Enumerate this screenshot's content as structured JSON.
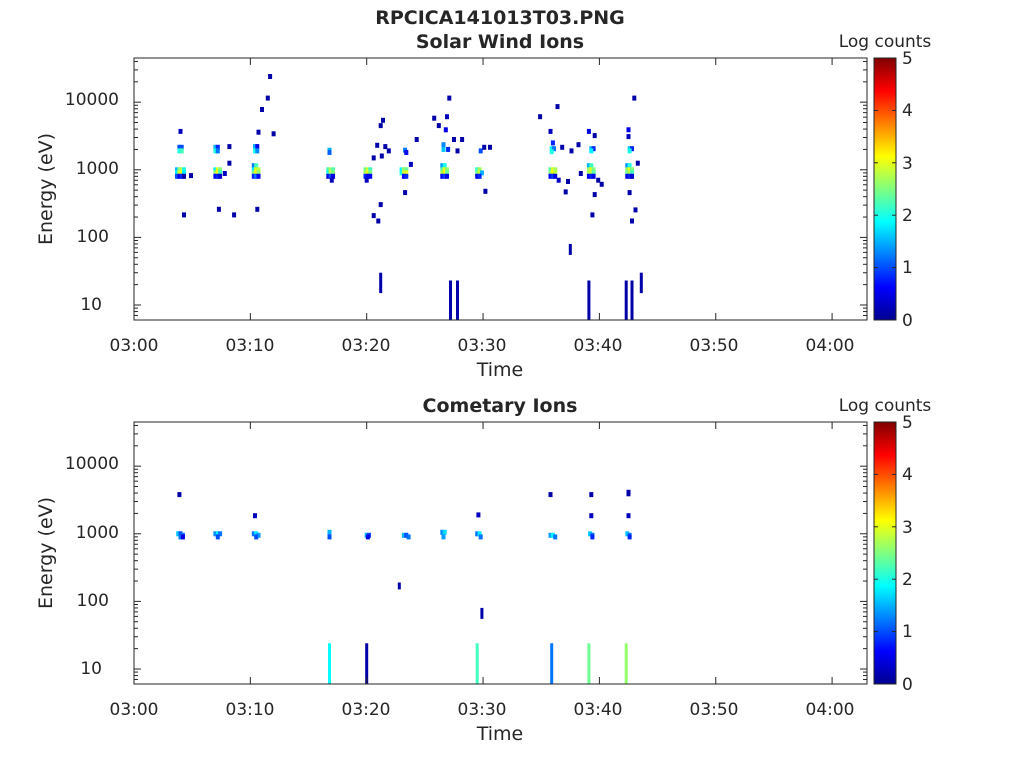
{
  "figure_title": "RPCICA141013T03.PNG",
  "colors": {
    "axis": "#262626",
    "background": "#ffffff",
    "colormap": "jet"
  },
  "chart_data": [
    {
      "type": "heatmap",
      "title": "Solar Wind Ions",
      "xlabel": "Time",
      "ylabel": "Energy (eV)",
      "x_ticks": [
        "03:00",
        "03:10",
        "03:20",
        "03:30",
        "03:40",
        "03:50",
        "04:00"
      ],
      "y_ticks": [
        "10",
        "100",
        "1000",
        "10000"
      ],
      "xlim_minutes": [
        0,
        63
      ],
      "ylim_eV": [
        6,
        45000
      ],
      "y_scale": "log",
      "grid": false,
      "colorbar": {
        "title": "Log counts",
        "ticks": [
          "0",
          "1",
          "2",
          "3",
          "4",
          "5"
        ],
        "range": [
          0,
          5
        ]
      },
      "points": [
        [
          4.0,
          3700,
          0.3
        ],
        [
          3.9,
          2150,
          1.0
        ],
        [
          4.1,
          2150,
          1.0
        ],
        [
          3.9,
          1900,
          2.0
        ],
        [
          4.1,
          1900,
          2.2
        ],
        [
          3.7,
          1000,
          1.5
        ],
        [
          3.9,
          1000,
          2.5
        ],
        [
          4.1,
          1000,
          2.8
        ],
        [
          4.3,
          1000,
          2.0
        ],
        [
          3.7,
          900,
          1.8
        ],
        [
          3.9,
          900,
          2.9
        ],
        [
          4.1,
          900,
          3.0
        ],
        [
          4.3,
          900,
          1.8
        ],
        [
          3.7,
          800,
          1.0
        ],
        [
          3.9,
          800,
          0.5
        ],
        [
          4.1,
          800,
          0.8
        ],
        [
          4.3,
          800,
          0.2
        ],
        [
          4.3,
          215,
          0.2
        ],
        [
          4.9,
          820,
          0.2
        ],
        [
          7.0,
          2150,
          1.5
        ],
        [
          7.2,
          2150,
          0.8
        ],
        [
          7.0,
          1900,
          2.0
        ],
        [
          7.2,
          1900,
          1.2
        ],
        [
          7.0,
          1000,
          1.8
        ],
        [
          7.2,
          1000,
          3.0
        ],
        [
          7.4,
          1000,
          2.5
        ],
        [
          7.0,
          900,
          2.6
        ],
        [
          7.2,
          900,
          3.1
        ],
        [
          7.4,
          900,
          2.2
        ],
        [
          7.0,
          800,
          0.6
        ],
        [
          7.2,
          800,
          0.8
        ],
        [
          7.4,
          800,
          0.4
        ],
        [
          7.8,
          880,
          0.3
        ],
        [
          8.2,
          2200,
          0.2
        ],
        [
          8.2,
          1250,
          0.2
        ],
        [
          7.3,
          260,
          0.2
        ],
        [
          8.6,
          215,
          0.2
        ],
        [
          10.4,
          2200,
          1.5
        ],
        [
          10.6,
          2200,
          0.5
        ],
        [
          10.4,
          1900,
          2.0
        ],
        [
          10.6,
          1900,
          1.3
        ],
        [
          10.3,
          1150,
          1.2
        ],
        [
          10.5,
          1150,
          2.2
        ],
        [
          10.3,
          1000,
          1.8
        ],
        [
          10.5,
          1000,
          3.0
        ],
        [
          10.7,
          1000,
          2.8
        ],
        [
          10.3,
          900,
          2.5
        ],
        [
          10.5,
          900,
          3.1
        ],
        [
          10.7,
          900,
          2.6
        ],
        [
          10.3,
          800,
          0.8
        ],
        [
          10.5,
          800,
          1.2
        ],
        [
          10.7,
          800,
          0.6
        ],
        [
          10.6,
          260,
          0.2
        ],
        [
          10.7,
          3600,
          0.2
        ],
        [
          11.0,
          7800,
          0.2
        ],
        [
          11.5,
          11500,
          0.2
        ],
        [
          11.7,
          24000,
          0.2
        ],
        [
          12.0,
          3400,
          0.2
        ],
        [
          16.8,
          1950,
          1.5
        ],
        [
          16.8,
          1800,
          1.1
        ],
        [
          16.7,
          1000,
          2.2
        ],
        [
          16.9,
          1000,
          2.7
        ],
        [
          17.1,
          1000,
          2.3
        ],
        [
          16.7,
          900,
          2.0
        ],
        [
          16.9,
          900,
          2.8
        ],
        [
          17.1,
          900,
          2.5
        ],
        [
          16.7,
          800,
          0.5
        ],
        [
          16.9,
          800,
          1.0
        ],
        [
          17.1,
          800,
          0.5
        ],
        [
          17.0,
          700,
          0.3
        ],
        [
          19.9,
          1000,
          2.4
        ],
        [
          20.1,
          1000,
          2.9
        ],
        [
          20.3,
          1000,
          2.2
        ],
        [
          19.9,
          900,
          2.7
        ],
        [
          20.1,
          900,
          3.0
        ],
        [
          20.3,
          900,
          2.5
        ],
        [
          19.9,
          800,
          0.8
        ],
        [
          20.1,
          800,
          0.5
        ],
        [
          20.3,
          800,
          0.6
        ],
        [
          20.0,
          700,
          0.3
        ],
        [
          20.6,
          1500,
          0.2
        ],
        [
          20.9,
          2300,
          0.2
        ],
        [
          21.2,
          4500,
          0.2
        ],
        [
          21.4,
          5400,
          0.2
        ],
        [
          21.6,
          2200,
          0.2
        ],
        [
          21.9,
          1900,
          0.2
        ],
        [
          21.3,
          1600,
          0.2
        ],
        [
          20.6,
          210,
          0.2
        ],
        [
          21.2,
          305,
          0.2
        ],
        [
          21.0,
          175,
          0.2
        ],
        [
          23.0,
          1000,
          1.8
        ],
        [
          23.2,
          1000,
          2.7
        ],
        [
          23.4,
          1000,
          2.4
        ],
        [
          23.0,
          900,
          2.0
        ],
        [
          23.2,
          900,
          2.8
        ],
        [
          23.4,
          900,
          3.0
        ],
        [
          23.2,
          800,
          0.6
        ],
        [
          23.4,
          800,
          0.8
        ],
        [
          23.3,
          1950,
          1.2
        ],
        [
          23.4,
          1800,
          0.6
        ],
        [
          23.8,
          1200,
          0.3
        ],
        [
          23.3,
          460,
          0.2
        ],
        [
          24.3,
          2800,
          0.2
        ],
        [
          26.5,
          1150,
          1.4
        ],
        [
          26.7,
          1150,
          2.0
        ],
        [
          26.5,
          1000,
          2.3
        ],
        [
          26.7,
          1000,
          3.0
        ],
        [
          26.9,
          1000,
          2.6
        ],
        [
          26.5,
          900,
          2.7
        ],
        [
          26.7,
          900,
          3.1
        ],
        [
          26.9,
          900,
          2.4
        ],
        [
          26.5,
          800,
          0.6
        ],
        [
          26.7,
          800,
          0.9
        ],
        [
          26.9,
          800,
          0.5
        ],
        [
          26.6,
          2000,
          1.6
        ],
        [
          27.0,
          2000,
          0.8
        ],
        [
          26.6,
          2350,
          1.3
        ],
        [
          26.8,
          3900,
          0.5
        ],
        [
          26.9,
          6100,
          0.3
        ],
        [
          27.1,
          11500,
          0.2
        ],
        [
          25.8,
          5800,
          0.2
        ],
        [
          26.2,
          4500,
          0.2
        ],
        [
          27.5,
          2800,
          0.2
        ],
        [
          27.8,
          1900,
          0.2
        ],
        [
          28.2,
          2800,
          0.2
        ],
        [
          29.5,
          1000,
          2.1
        ],
        [
          29.7,
          1000,
          2.7
        ],
        [
          29.5,
          900,
          2.4
        ],
        [
          29.7,
          900,
          2.9
        ],
        [
          29.9,
          900,
          1.5
        ],
        [
          29.5,
          800,
          0.5
        ],
        [
          29.7,
          800,
          0.8
        ],
        [
          29.8,
          1900,
          1.0
        ],
        [
          30.1,
          2150,
          0.2
        ],
        [
          30.6,
          2150,
          0.2
        ],
        [
          30.2,
          480,
          0.2
        ],
        [
          34.9,
          6100,
          0.2
        ],
        [
          35.8,
          3700,
          0.3
        ],
        [
          36.0,
          2500,
          0.8
        ],
        [
          36.4,
          8600,
          0.2
        ],
        [
          35.9,
          2050,
          1.8
        ],
        [
          36.1,
          2050,
          1.2
        ],
        [
          35.9,
          1850,
          2.0
        ],
        [
          35.8,
          1000,
          2.3
        ],
        [
          36.0,
          1000,
          3.0
        ],
        [
          36.2,
          1000,
          2.7
        ],
        [
          35.8,
          900,
          2.5
        ],
        [
          36.0,
          900,
          3.1
        ],
        [
          36.2,
          900,
          2.8
        ],
        [
          35.8,
          800,
          0.6
        ],
        [
          36.0,
          800,
          0.9
        ],
        [
          36.2,
          800,
          0.5
        ],
        [
          36.5,
          700,
          0.3
        ],
        [
          36.8,
          2150,
          0.2
        ],
        [
          37.3,
          670,
          0.2
        ],
        [
          37.1,
          470,
          0.2
        ],
        [
          37.6,
          1900,
          0.2
        ],
        [
          38.2,
          2350,
          0.2
        ],
        [
          38.4,
          880,
          0.2
        ],
        [
          39.1,
          3700,
          0.5
        ],
        [
          39.3,
          2050,
          1.5
        ],
        [
          39.5,
          2050,
          0.8
        ],
        [
          39.3,
          1900,
          1.8
        ],
        [
          39.1,
          1150,
          1.5
        ],
        [
          39.3,
          1150,
          2.2
        ],
        [
          39.1,
          1000,
          2.6
        ],
        [
          39.3,
          1000,
          3.0
        ],
        [
          39.5,
          1000,
          2.5
        ],
        [
          39.1,
          900,
          2.7
        ],
        [
          39.3,
          900,
          2.9
        ],
        [
          39.5,
          900,
          2.3
        ],
        [
          39.1,
          800,
          0.6
        ],
        [
          39.3,
          800,
          0.8
        ],
        [
          39.5,
          800,
          0.5
        ],
        [
          39.6,
          3200,
          0.2
        ],
        [
          39.9,
          700,
          0.2
        ],
        [
          39.6,
          430,
          0.2
        ],
        [
          39.4,
          215,
          0.2
        ],
        [
          40.2,
          610,
          0.2
        ],
        [
          42.5,
          3900,
          0.5
        ],
        [
          42.5,
          3100,
          0.3
        ],
        [
          42.6,
          2050,
          1.6
        ],
        [
          42.8,
          2050,
          0.8
        ],
        [
          42.6,
          1900,
          2.0
        ],
        [
          42.4,
          1150,
          1.3
        ],
        [
          42.6,
          1150,
          2.0
        ],
        [
          42.4,
          1000,
          2.6
        ],
        [
          42.6,
          1000,
          3.0
        ],
        [
          42.8,
          1000,
          2.5
        ],
        [
          42.4,
          900,
          2.4
        ],
        [
          42.6,
          900,
          2.8
        ],
        [
          42.8,
          900,
          2.2
        ],
        [
          42.4,
          800,
          0.5
        ],
        [
          42.6,
          800,
          0.8
        ],
        [
          42.8,
          800,
          0.4
        ],
        [
          43.0,
          11500,
          0.2
        ],
        [
          43.3,
          1250,
          0.2
        ],
        [
          42.6,
          460,
          0.2
        ],
        [
          43.1,
          255,
          0.2
        ],
        [
          42.8,
          175,
          0.2
        ]
      ],
      "lines": [
        [
          21.2,
          15,
          30,
          0.2
        ],
        [
          27.2,
          5,
          23,
          0.2
        ],
        [
          27.8,
          5,
          23,
          0.2
        ],
        [
          37.5,
          55,
          80,
          0.2
        ],
        [
          39.1,
          5,
          23,
          0.2
        ],
        [
          42.3,
          5,
          23,
          0.2
        ],
        [
          42.8,
          5,
          23,
          0.2
        ],
        [
          43.6,
          15,
          30,
          0.2
        ]
      ]
    },
    {
      "type": "heatmap",
      "title": "Cometary Ions",
      "xlabel": "Time",
      "ylabel": "Energy (eV)",
      "x_ticks": [
        "03:00",
        "03:10",
        "03:20",
        "03:30",
        "03:40",
        "03:50",
        "04:00"
      ],
      "y_ticks": [
        "10",
        "100",
        "1000",
        "10000"
      ],
      "xlim_minutes": [
        0,
        63
      ],
      "ylim_eV": [
        6,
        45000
      ],
      "y_scale": "log",
      "grid": false,
      "colorbar": {
        "title": "Log counts",
        "ticks": [
          "0",
          "1",
          "2",
          "3",
          "4",
          "5"
        ],
        "range": [
          0,
          5
        ]
      },
      "points": [
        [
          3.9,
          3800,
          0.2
        ],
        [
          3.8,
          1000,
          1.6
        ],
        [
          4.0,
          1000,
          1.0
        ],
        [
          4.2,
          950,
          1.2
        ],
        [
          4.0,
          900,
          1.2
        ],
        [
          4.2,
          900,
          0.5
        ],
        [
          7.0,
          1000,
          1.3
        ],
        [
          7.2,
          1000,
          1.8
        ],
        [
          7.4,
          1000,
          1.2
        ],
        [
          7.2,
          900,
          1.0
        ],
        [
          10.4,
          1850,
          0.3
        ],
        [
          10.3,
          1000,
          1.2
        ],
        [
          10.5,
          1000,
          1.8
        ],
        [
          10.7,
          950,
          1.4
        ],
        [
          10.5,
          900,
          1.0
        ],
        [
          16.8,
          1050,
          1.5
        ],
        [
          16.8,
          900,
          1.0
        ],
        [
          20.0,
          950,
          1.5
        ],
        [
          20.2,
          950,
          1.0
        ],
        [
          20.1,
          900,
          0.5
        ],
        [
          23.2,
          950,
          1.5
        ],
        [
          23.4,
          950,
          1.0
        ],
        [
          23.6,
          900,
          1.2
        ],
        [
          26.5,
          1050,
          1.3
        ],
        [
          26.7,
          1050,
          1.7
        ],
        [
          26.6,
          900,
          1.4
        ],
        [
          29.6,
          1900,
          0.3
        ],
        [
          29.5,
          1000,
          1.2
        ],
        [
          29.7,
          1000,
          1.8
        ],
        [
          29.8,
          900,
          1.2
        ],
        [
          35.8,
          3800,
          0.2
        ],
        [
          35.8,
          950,
          1.4
        ],
        [
          36.0,
          950,
          1.8
        ],
        [
          36.2,
          900,
          1.2
        ],
        [
          39.3,
          3800,
          0.2
        ],
        [
          39.3,
          1850,
          0.3
        ],
        [
          39.2,
          1000,
          1.6
        ],
        [
          39.4,
          950,
          1.2
        ],
        [
          39.4,
          900,
          0.8
        ],
        [
          42.5,
          4100,
          0.2
        ],
        [
          42.5,
          3900,
          0.2
        ],
        [
          42.5,
          1850,
          0.3
        ],
        [
          42.4,
          1000,
          1.6
        ],
        [
          42.6,
          950,
          1.2
        ],
        [
          42.6,
          900,
          0.8
        ]
      ],
      "lines": [
        [
          22.8,
          150,
          190,
          0.2
        ],
        [
          29.9,
          55,
          80,
          0.2
        ],
        [
          16.8,
          5,
          24,
          1.9
        ],
        [
          20.0,
          5,
          24,
          0.2
        ],
        [
          29.5,
          5,
          24,
          2.2
        ],
        [
          35.9,
          5,
          24,
          1.2
        ],
        [
          39.1,
          5,
          24,
          2.4
        ],
        [
          42.3,
          5,
          24,
          2.6
        ]
      ]
    }
  ]
}
